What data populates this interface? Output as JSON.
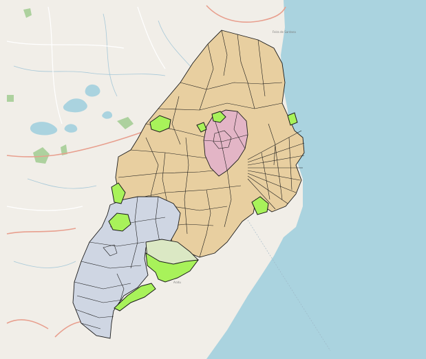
{
  "colors": {
    "land_base": "#f1eee8",
    "sea": "#aad3df",
    "lake": "#aad3df",
    "forest_patch": "#add19e",
    "highway": "#e89f8e",
    "minor_road": "#ffffff",
    "stream": "#a6c8d8",
    "district_tan": "#e8cfa0",
    "district_pink": "#e3b5c6",
    "district_gray": "#cfd6e3",
    "district_pale_green": "#dbe8c4",
    "highlight_green": "#a8f25a",
    "boundary_stroke": "#1a1a1a"
  },
  "layers": [
    {
      "name": "basemap",
      "kind": "openstreetmap-tiles"
    },
    {
      "name": "main-region",
      "kind": "polygons",
      "fill_name": "tan"
    },
    {
      "name": "central-city",
      "kind": "polygon",
      "fill_name": "pink"
    },
    {
      "name": "southern-region",
      "kind": "polygons",
      "fill_name": "gray"
    },
    {
      "name": "southeast-district",
      "kind": "polygon",
      "fill_name": "pale-green"
    },
    {
      "name": "highlighted-areas",
      "kind": "polygons",
      "fill_name": "bright-green"
    }
  ],
  "map_labels": {
    "north_town": "Feira de Santana",
    "harbor_label": "Aratu"
  }
}
